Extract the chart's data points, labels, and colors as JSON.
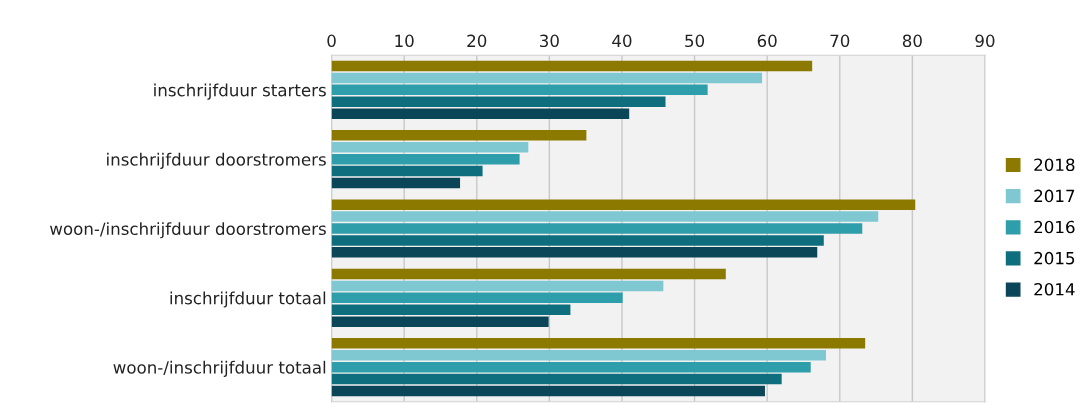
{
  "chart_data": {
    "type": "bar",
    "orientation": "horizontal",
    "categories": [
      "inschrijfduur starters",
      "inschrijfduur doorstromers",
      "woon-/inschrijfduur doorstromers",
      "inschrijfduur totaal",
      "woon-/inschrijfduur totaal"
    ],
    "series": [
      {
        "name": "2018",
        "color": "#8c7a00",
        "values": [
          66.2,
          35.1,
          80.4,
          54.3,
          73.5
        ]
      },
      {
        "name": "2017",
        "color": "#7fc8d2",
        "values": [
          59.3,
          27.1,
          75.3,
          45.7,
          68.1
        ]
      },
      {
        "name": "2016",
        "color": "#2f9eab",
        "values": [
          51.8,
          25.9,
          73.1,
          40.1,
          66.0
        ]
      },
      {
        "name": "2015",
        "color": "#0e6e7e",
        "values": [
          46.0,
          20.8,
          67.8,
          32.9,
          62.0
        ]
      },
      {
        "name": "2014",
        "color": "#0b4658",
        "values": [
          41.0,
          17.7,
          66.9,
          29.9,
          59.7
        ]
      }
    ],
    "xlim": [
      0,
      90
    ],
    "xticks": [
      0,
      10,
      20,
      30,
      40,
      50,
      60,
      70,
      80,
      90
    ],
    "grid": "x",
    "legend": "right"
  }
}
